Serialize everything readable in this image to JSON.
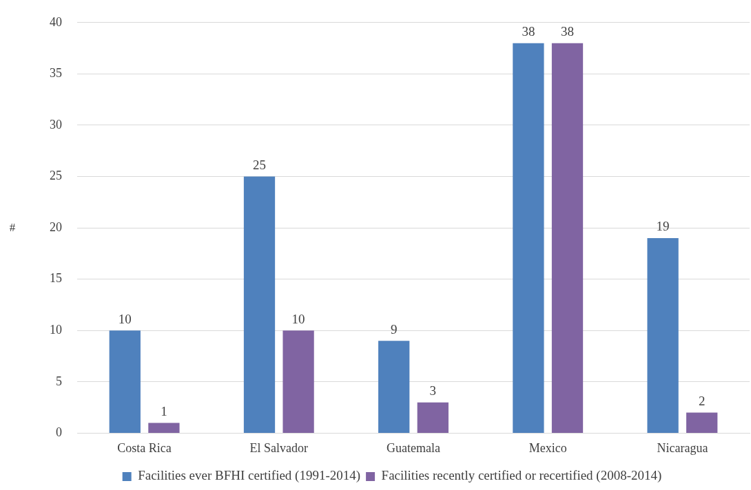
{
  "chart_data": {
    "type": "bar",
    "ylabel": "#",
    "categories": [
      "Costa Rica",
      "El Salvador",
      "Guatemala",
      "Mexico",
      "Nicaragua"
    ],
    "series": [
      {
        "name": "Facilities ever BFHI certified (1991-2014)",
        "color": "#4f81bd",
        "values": [
          10,
          25,
          9,
          38,
          19
        ]
      },
      {
        "name": "Facilities recently certified or recertified (2008-2014)",
        "color": "#8064a2",
        "values": [
          1,
          10,
          3,
          38,
          2
        ]
      }
    ],
    "ylim": [
      0,
      40
    ],
    "yticks": [
      0,
      5,
      10,
      15,
      20,
      25,
      30,
      35,
      40
    ],
    "grid": "y",
    "legend": "bottom",
    "data_labels": true
  }
}
